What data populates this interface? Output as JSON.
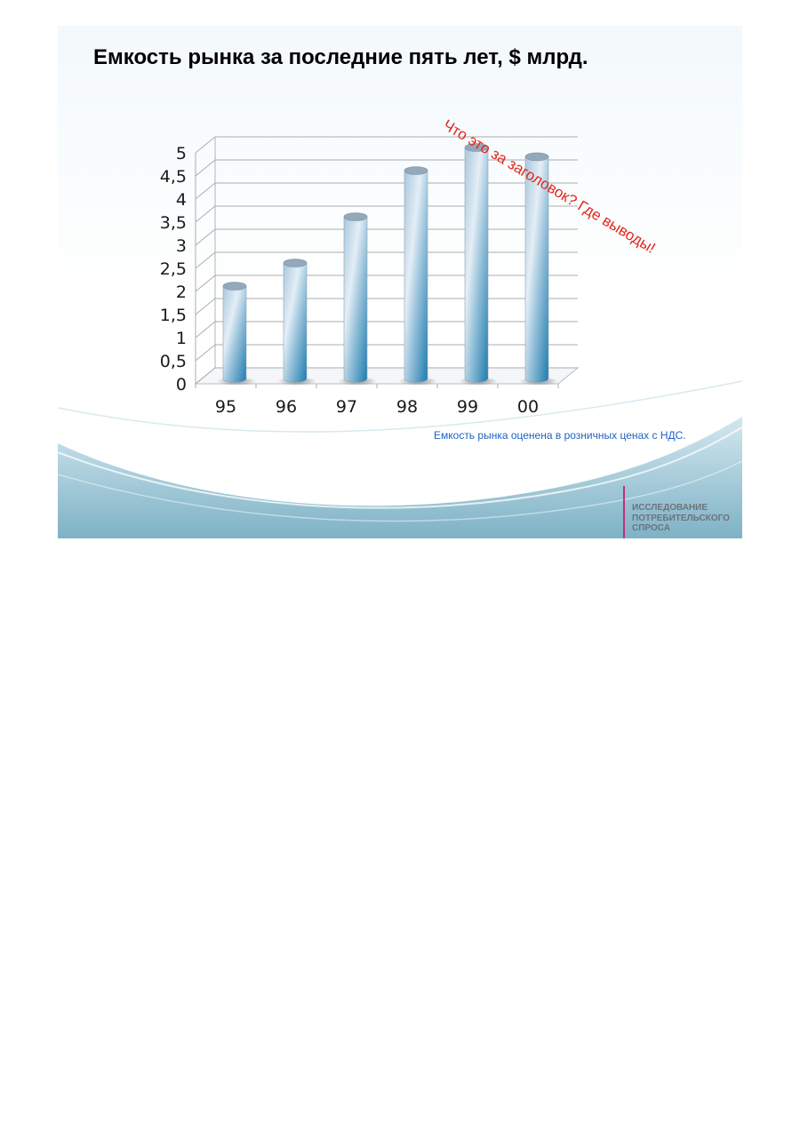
{
  "slide": {
    "title": "Емкость рынка за последние пять лет, $ млрд.",
    "annotation": "Что это за заголовок? Где выводы!",
    "footnote": "Емкость рынка оценена в розничных ценах с НДС.",
    "brand_label": "ИССЛЕДОВАНИЕ ПОТРЕБИТЕЛЬСКОГО СПРОСА",
    "colors": {
      "annotation": "#e3261c",
      "footnote": "#1f63c6",
      "brand_divider": "#c0307a",
      "bar_light": "#dde9f3",
      "bar_dark": "#1f7fb0",
      "wave": "#7fb4c8"
    }
  },
  "chart_data": {
    "type": "bar",
    "style": "3d-cylinder",
    "categories": [
      "95",
      "96",
      "97",
      "98",
      "99",
      "00"
    ],
    "values": [
      2,
      2.5,
      3.5,
      4.5,
      5,
      4.8
    ],
    "y_ticks": [
      "0",
      "0,5",
      "1",
      "1,5",
      "2",
      "2,5",
      "3",
      "3,5",
      "4",
      "4,5",
      "5"
    ],
    "ylim": [
      0,
      5
    ],
    "grid": true,
    "legend": "none"
  }
}
